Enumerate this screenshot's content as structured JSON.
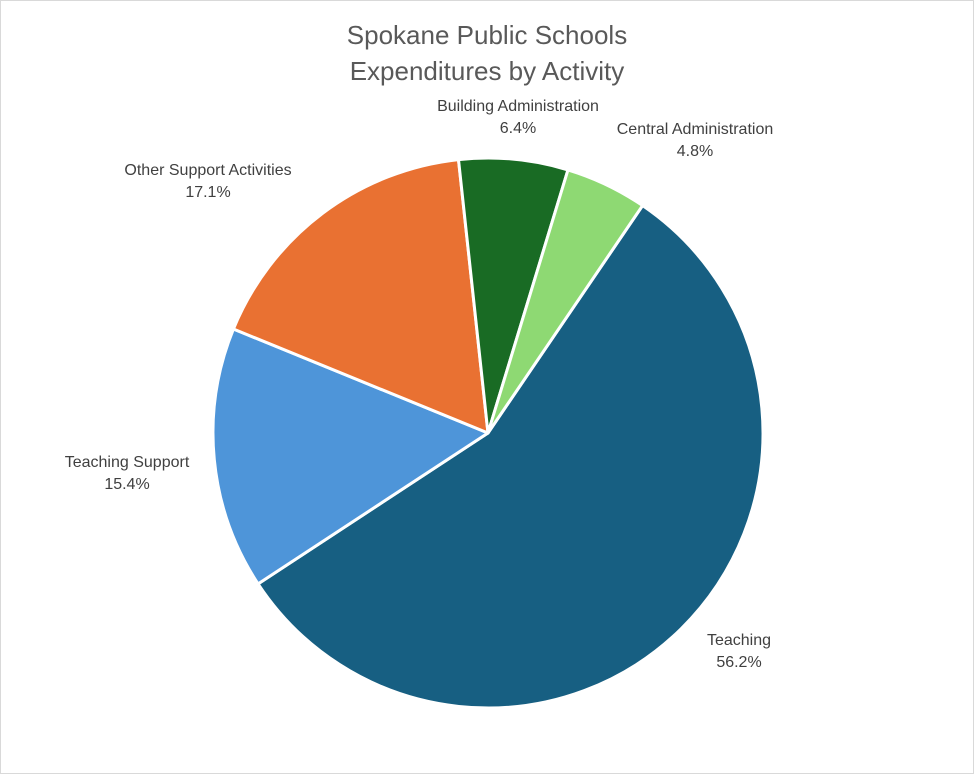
{
  "chart_data": {
    "type": "pie",
    "title": "Spokane Public Schools Expenditures by Activity",
    "title_lines": [
      "Spokane Public Schools",
      "Expenditures by Activity"
    ],
    "slices": [
      {
        "label": "Teaching",
        "value": 56.2,
        "value_label": "56.2%",
        "color": "#175F82"
      },
      {
        "label": "Teaching Support",
        "value": 15.4,
        "value_label": "15.4%",
        "color": "#4E95D9"
      },
      {
        "label": "Other Support Activities",
        "value": 17.1,
        "value_label": "17.1%",
        "color": "#E97132"
      },
      {
        "label": "Building Administration",
        "value": 6.4,
        "value_label": "6.4%",
        "color": "#196B24"
      },
      {
        "label": "Central Administration",
        "value": 4.8,
        "value_label": "4.8%",
        "color": "#8ED973"
      }
    ],
    "legend": "none",
    "data_labels": "category name and percentage"
  }
}
